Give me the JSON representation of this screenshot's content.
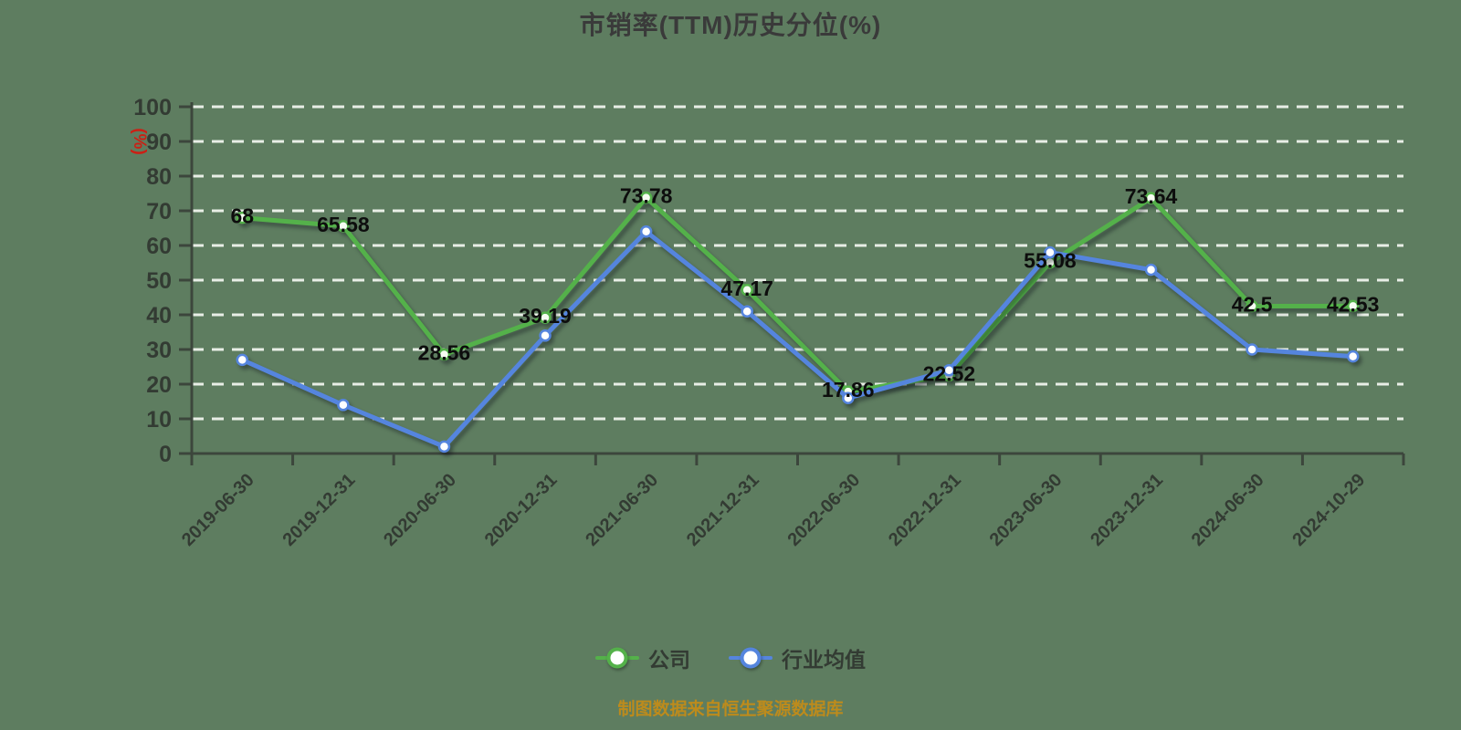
{
  "colors": {
    "background": "#5e7d60",
    "grid": "#e8eee6",
    "axis": "#3c463c",
    "tick_label": "#333b33",
    "value_label": "#0d0d0d",
    "title": "#3a3a3a",
    "y_unit_label": "#cc1f14",
    "footer": "#bd8b1c",
    "company_series": "#54b14a",
    "industry_series": "#5585de"
  },
  "footer": {
    "text": "制图数据来自恒生聚源数据库"
  },
  "chart_data": {
    "type": "line",
    "title": "市销率(TTM)历史分位(%)",
    "ylabel": "(%)",
    "xlabel": "",
    "ylim": [
      0,
      100
    ],
    "yticks": [
      0,
      10,
      20,
      30,
      40,
      50,
      60,
      70,
      80,
      90,
      100
    ],
    "grid": {
      "horizontal": true,
      "style": "dashed",
      "color": "#e8eee6"
    },
    "legend_position": "bottom",
    "categories": [
      "2019-06-30",
      "2019-12-31",
      "2020-06-30",
      "2020-12-31",
      "2021-06-30",
      "2021-12-31",
      "2022-06-30",
      "2022-12-31",
      "2023-06-30",
      "2023-12-31",
      "2024-06-30",
      "2024-10-29"
    ],
    "series": [
      {
        "key": "company",
        "name": "公司",
        "color": "#54b14a",
        "marker_fill": "#f6fdf2",
        "show_value_labels": true,
        "values": [
          68,
          65.58,
          28.56,
          39.19,
          73.78,
          47.17,
          17.86,
          22.52,
          55.08,
          73.64,
          42.5,
          42.53
        ]
      },
      {
        "key": "industry-average",
        "name": "行业均值",
        "color": "#5585de",
        "marker_fill": "#ffffff",
        "show_value_labels": false,
        "values": [
          27,
          14,
          2,
          34,
          64,
          41,
          16,
          24,
          58,
          53,
          30,
          28
        ]
      }
    ]
  }
}
